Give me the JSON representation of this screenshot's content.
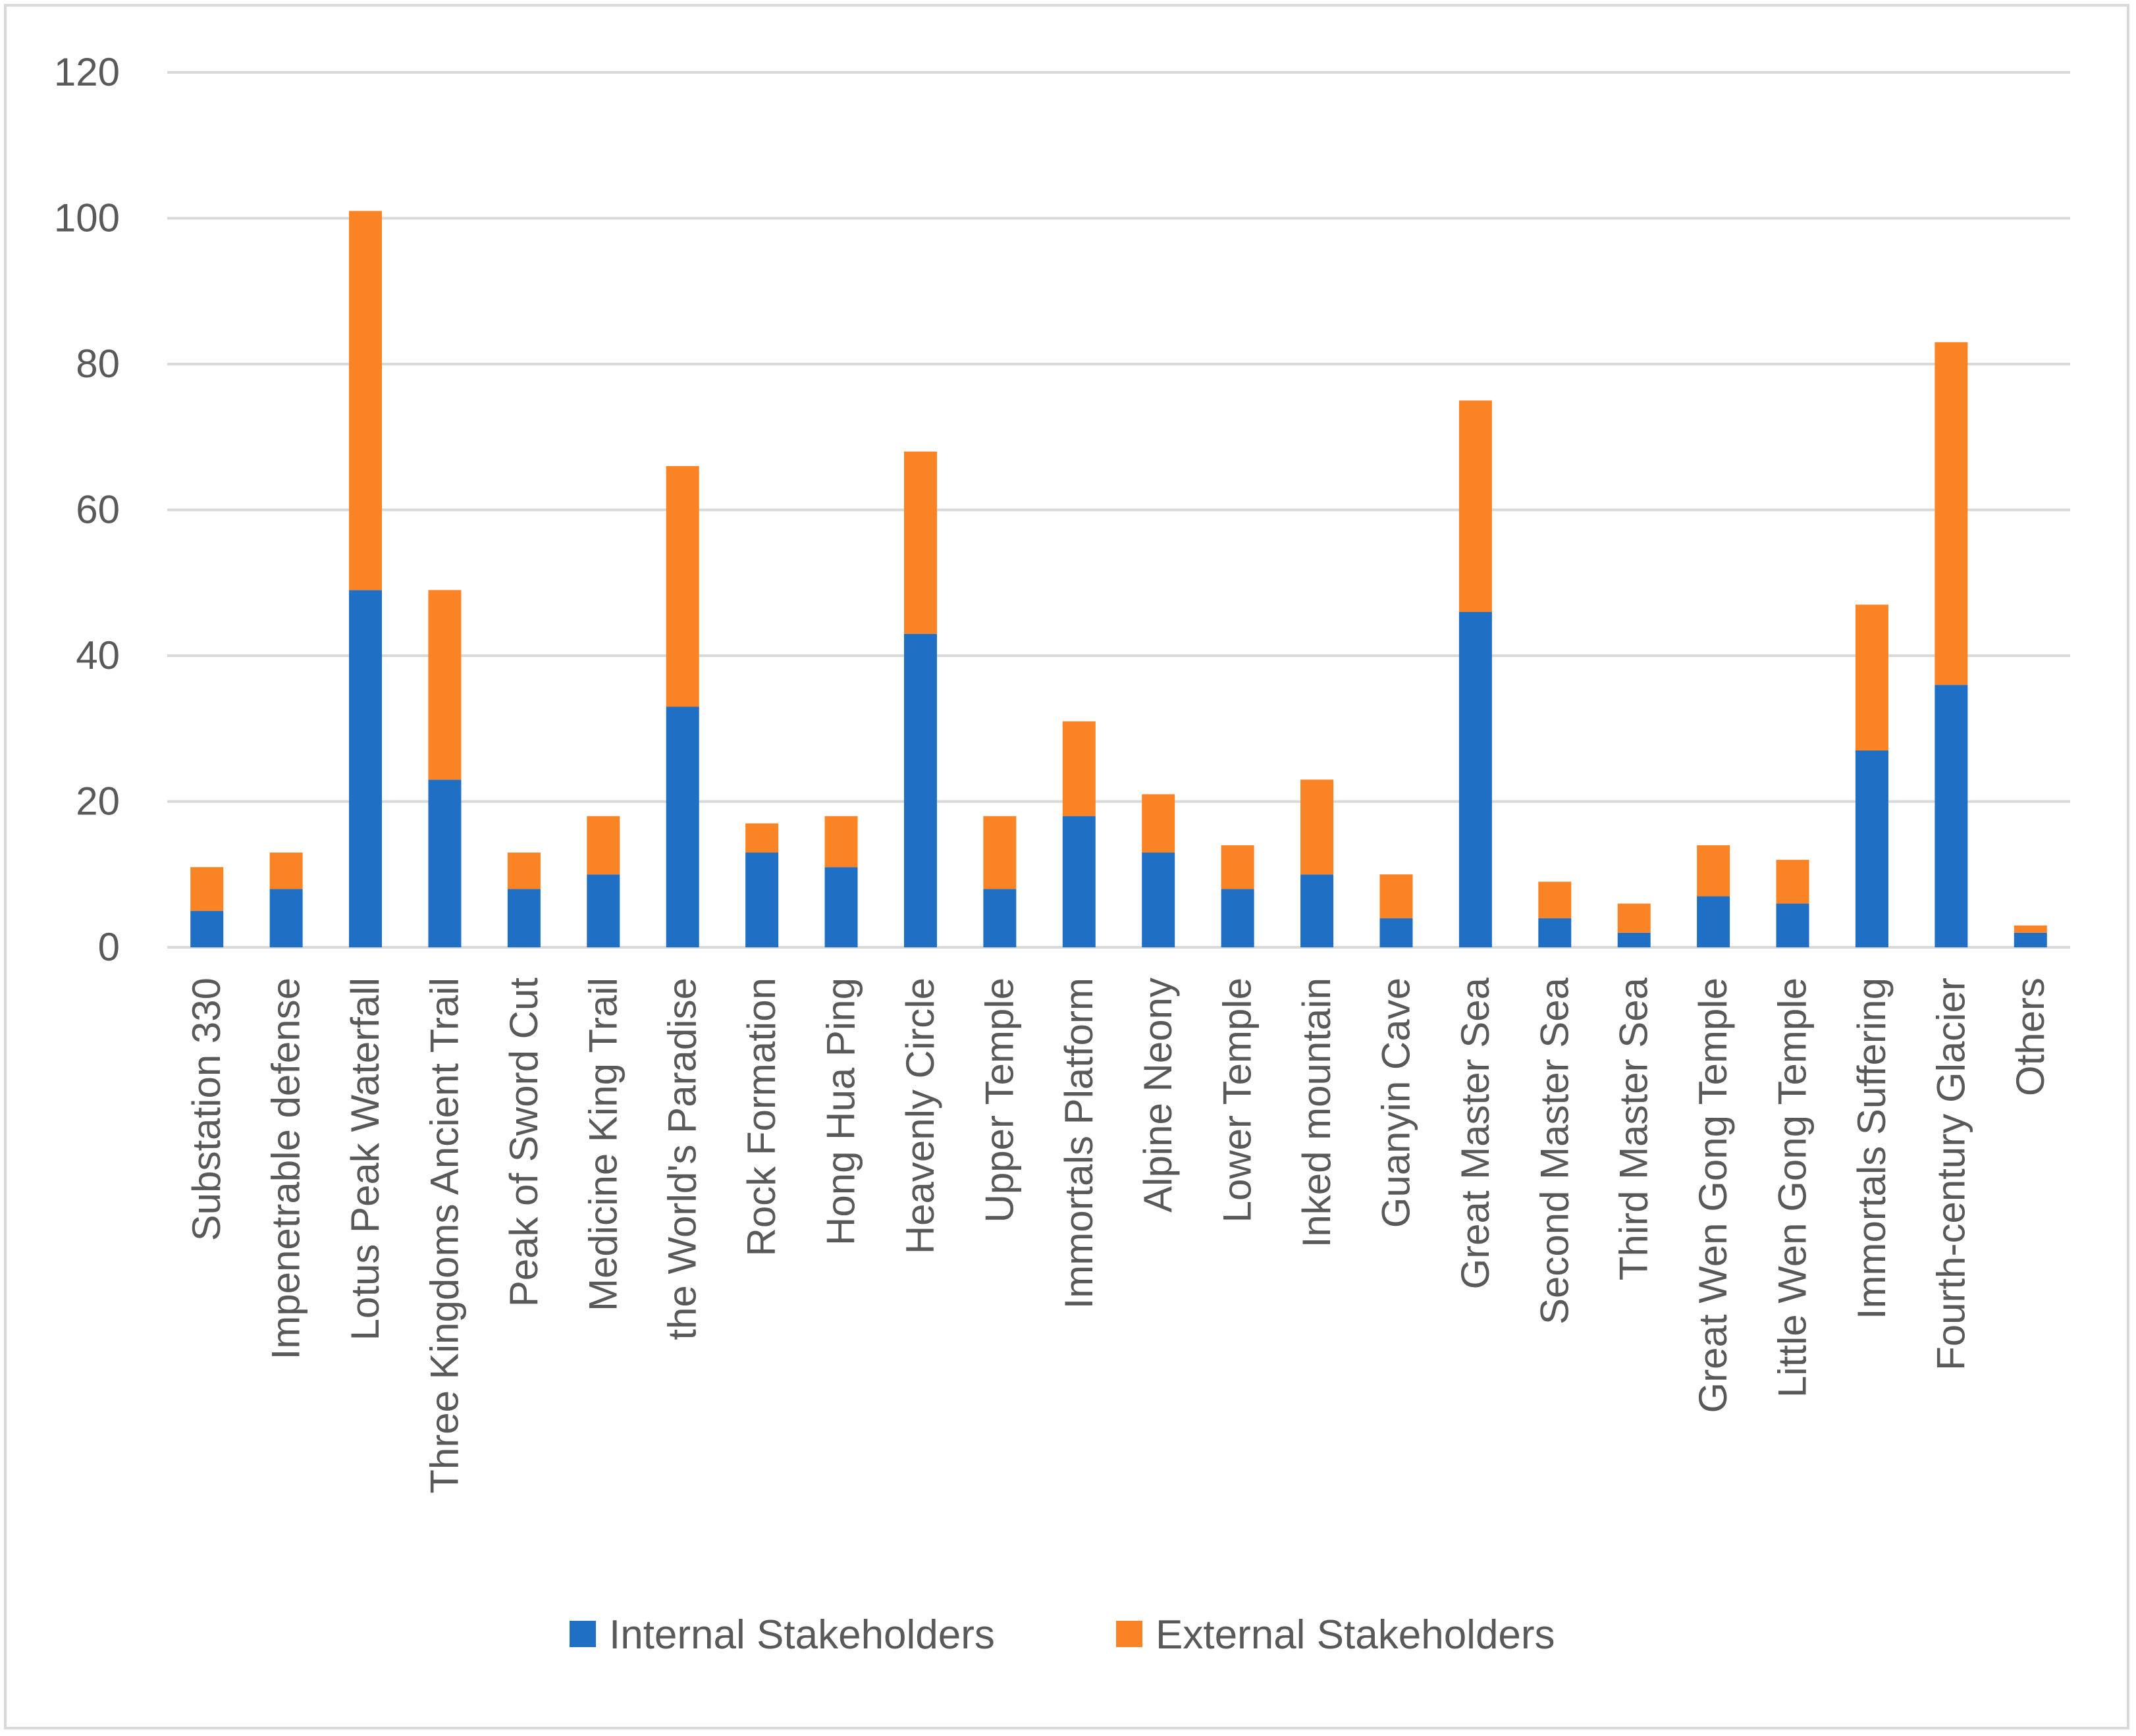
{
  "chart_data": {
    "type": "bar",
    "stacked": true,
    "title": "",
    "xlabel": "",
    "ylabel": "",
    "ylim": [
      0,
      120
    ],
    "yticks": [
      0,
      20,
      40,
      60,
      80,
      100,
      120
    ],
    "grid": true,
    "legend_position": "bottom",
    "categories": [
      "Substation 330",
      "Impenetrable defense",
      "Lotus Peak Waterfall",
      "Three Kingdoms Ancient Trail",
      "Peak of Sword Cut",
      "Medicine King Trail",
      "the World's Paradise",
      "Rock Formation",
      "Hong Hua Ping",
      "Heavenly Circle",
      "Upper Temple",
      "Immortals Platform",
      "Alpine Neony",
      "Lower Temple",
      "Inked mountain",
      "Guanyin Cave",
      "Great Master Sea",
      "Second Master Sea",
      "Third Master Sea",
      "Great Wen Gong Temple",
      "Little Wen Gong Temple",
      "Immortals Suffering",
      "Fourth-century Glacier",
      "Others"
    ],
    "series": [
      {
        "name": "Internal Stakeholders",
        "color": "#1f6fc5",
        "values": [
          5,
          8,
          49,
          23,
          8,
          10,
          33,
          13,
          11,
          43,
          8,
          18,
          13,
          8,
          10,
          4,
          46,
          4,
          2,
          7,
          6,
          27,
          36,
          2
        ]
      },
      {
        "name": "External Stakeholders",
        "color": "#f98325",
        "values": [
          6,
          5,
          52,
          26,
          5,
          8,
          33,
          4,
          7,
          25,
          10,
          13,
          8,
          6,
          13,
          6,
          29,
          5,
          4,
          7,
          6,
          20,
          47,
          1
        ]
      }
    ]
  }
}
